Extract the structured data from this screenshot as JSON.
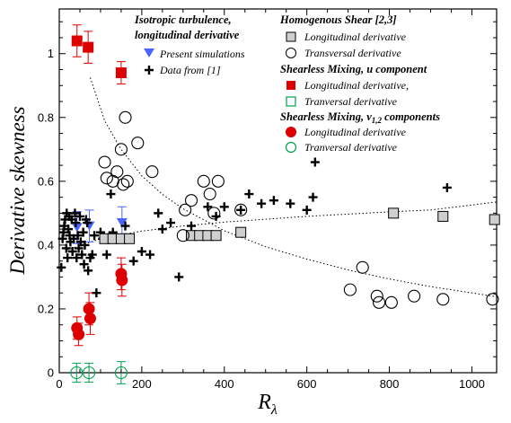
{
  "chart_data": {
    "type": "scatter",
    "xlabel": "R",
    "xlabel_sub": "λ",
    "ylabel": "Derivative skewness",
    "xlim": [
      0,
      1060
    ],
    "ylim": [
      0,
      1.14
    ],
    "xticks": [
      0,
      200,
      400,
      600,
      800,
      1000
    ],
    "yticks": [
      0,
      0.2,
      0.4,
      0.6,
      0.8,
      1
    ],
    "ytick_labels": [
      "0",
      "0.2",
      "0.4",
      "0.6",
      "0.8",
      "1"
    ],
    "series": [
      {
        "key": "present_sim",
        "marker": "triangle-down",
        "color": "#4a64ff",
        "points": [
          [
            43,
            0.455
          ],
          [
            73,
            0.46
          ],
          [
            152,
            0.47
          ]
        ],
        "err": [
          0.05,
          0.05,
          0.05
        ]
      },
      {
        "key": "data_ref1",
        "marker": "plus",
        "color": "#000000",
        "points": [
          [
            5,
            0.33
          ],
          [
            8,
            0.42
          ],
          [
            10,
            0.44
          ],
          [
            12,
            0.46
          ],
          [
            14,
            0.48
          ],
          [
            17,
            0.39
          ],
          [
            18,
            0.5
          ],
          [
            20,
            0.36
          ],
          [
            22,
            0.45
          ],
          [
            24,
            0.49
          ],
          [
            25,
            0.43
          ],
          [
            27,
            0.41
          ],
          [
            30,
            0.48
          ],
          [
            32,
            0.38
          ],
          [
            35,
            0.42
          ],
          [
            38,
            0.5
          ],
          [
            40,
            0.47
          ],
          [
            42,
            0.36
          ],
          [
            45,
            0.43
          ],
          [
            47,
            0.39
          ],
          [
            50,
            0.49
          ],
          [
            52,
            0.41
          ],
          [
            55,
            0.37
          ],
          [
            58,
            0.44
          ],
          [
            60,
            0.34
          ],
          [
            62,
            0.4
          ],
          [
            65,
            0.48
          ],
          [
            68,
            0.47
          ],
          [
            70,
            0.32
          ],
          [
            75,
            0.36
          ],
          [
            80,
            0.37
          ],
          [
            85,
            0.43
          ],
          [
            90,
            0.25
          ],
          [
            100,
            0.44
          ],
          [
            105,
            0.42
          ],
          [
            115,
            0.37
          ],
          [
            125,
            0.56
          ],
          [
            130,
            0.44
          ],
          [
            150,
            0.42
          ],
          [
            160,
            0.46
          ],
          [
            180,
            0.35
          ],
          [
            200,
            0.38
          ],
          [
            220,
            0.37
          ],
          [
            240,
            0.5
          ],
          [
            250,
            0.45
          ],
          [
            270,
            0.47
          ],
          [
            290,
            0.3
          ],
          [
            320,
            0.46
          ],
          [
            360,
            0.52
          ],
          [
            380,
            0.49
          ],
          [
            400,
            0.52
          ],
          [
            440,
            0.51
          ],
          [
            460,
            0.56
          ],
          [
            490,
            0.53
          ],
          [
            520,
            0.54
          ],
          [
            560,
            0.53
          ],
          [
            600,
            0.51
          ],
          [
            615,
            0.55
          ],
          [
            620,
            0.66
          ],
          [
            940,
            0.58
          ]
        ]
      },
      {
        "key": "hs_longitudinal",
        "marker": "square",
        "color": "#cfcfcf",
        "points": [
          [
            110,
            0.42
          ],
          [
            130,
            0.42
          ],
          [
            150,
            0.42
          ],
          [
            170,
            0.42
          ],
          [
            320,
            0.43
          ],
          [
            340,
            0.43
          ],
          [
            360,
            0.43
          ],
          [
            380,
            0.43
          ],
          [
            440,
            0.44
          ],
          [
            810,
            0.5
          ],
          [
            930,
            0.49
          ],
          [
            1055,
            0.48
          ]
        ]
      },
      {
        "key": "hs_transversal",
        "marker": "circle-open",
        "color": "#000000",
        "points": [
          [
            110,
            0.66
          ],
          [
            115,
            0.61
          ],
          [
            130,
            0.6
          ],
          [
            140,
            0.63
          ],
          [
            150,
            0.7
          ],
          [
            155,
            0.59
          ],
          [
            160,
            0.8
          ],
          [
            165,
            0.6
          ],
          [
            190,
            0.72
          ],
          [
            225,
            0.63
          ],
          [
            300,
            0.43
          ],
          [
            305,
            0.51
          ],
          [
            320,
            0.54
          ],
          [
            350,
            0.6
          ],
          [
            365,
            0.56
          ],
          [
            375,
            0.5
          ],
          [
            385,
            0.6
          ],
          [
            440,
            0.51
          ],
          [
            705,
            0.26
          ],
          [
            735,
            0.33
          ],
          [
            770,
            0.24
          ],
          [
            775,
            0.22
          ],
          [
            805,
            0.22
          ],
          [
            860,
            0.24
          ],
          [
            930,
            0.23
          ],
          [
            1050,
            0.23
          ]
        ]
      },
      {
        "key": "sm_u_longitudinal",
        "marker": "square",
        "color": "#dd0000",
        "points": [
          [
            43,
            1.04
          ],
          [
            70,
            1.02
          ],
          [
            150,
            0.94
          ]
        ],
        "err": [
          0.05,
          0.05,
          0.035
        ]
      },
      {
        "key": "sm_u_transversal",
        "marker": "square-open",
        "color": "#00a050",
        "points": []
      },
      {
        "key": "sm_v_longitudinal",
        "marker": "circle",
        "color": "#dd0000",
        "points": [
          [
            43,
            0.14
          ],
          [
            47,
            0.12
          ],
          [
            72,
            0.2
          ],
          [
            75,
            0.17
          ],
          [
            150,
            0.31
          ],
          [
            152,
            0.29
          ]
        ],
        "err": [
          0.035,
          0.035,
          0.05,
          0.05,
          0.05,
          0.05
        ]
      },
      {
        "key": "sm_v_transversal",
        "marker": "circle-open",
        "color": "#00a050",
        "points": [
          [
            42,
            0.0
          ],
          [
            72,
            0.0
          ],
          [
            150,
            0.0
          ]
        ],
        "err": [
          0.03,
          0.03,
          0.035
        ]
      }
    ],
    "fits": [
      {
        "style": "dotted",
        "points": [
          [
            75,
            0.925
          ],
          [
            110,
            0.79
          ],
          [
            150,
            0.7
          ],
          [
            200,
            0.617
          ],
          [
            250,
            0.559
          ],
          [
            300,
            0.514
          ],
          [
            400,
            0.445
          ],
          [
            500,
            0.395
          ],
          [
            600,
            0.356
          ],
          [
            700,
            0.322
          ],
          [
            800,
            0.294
          ],
          [
            900,
            0.27
          ],
          [
            1060,
            0.238
          ]
        ]
      },
      {
        "style": "dotted",
        "points": [
          [
            20,
            0.385
          ],
          [
            100,
            0.42
          ],
          [
            200,
            0.444
          ],
          [
            300,
            0.46
          ],
          [
            400,
            0.472
          ],
          [
            500,
            0.481
          ],
          [
            600,
            0.49
          ],
          [
            700,
            0.497
          ],
          [
            800,
            0.504
          ],
          [
            900,
            0.51
          ],
          [
            1060,
            0.535
          ]
        ]
      }
    ],
    "legend": {
      "placement": "top",
      "iso_title": "Isotropic turbulence,",
      "iso_title2": "longitudinal derivative",
      "iso_present": "Present simulations",
      "iso_data": "Data from [1]",
      "hs_title": "Homogenous Shear [2,3]",
      "hs_long": "Longitudinal derivative",
      "hs_trans": "Transversal derivative",
      "smu_title": "Shearless Mixing, u component",
      "smu_long": "Longitudinal derivative,",
      "smu_trans": "Tranversal derivative",
      "smv_title_a": "Shearless Mixing, v",
      "smv_title_sub": "1,2",
      "smv_title_b": " components",
      "smv_long": "Longitudinal derivative",
      "smv_trans": "Tranversal derivative"
    }
  }
}
